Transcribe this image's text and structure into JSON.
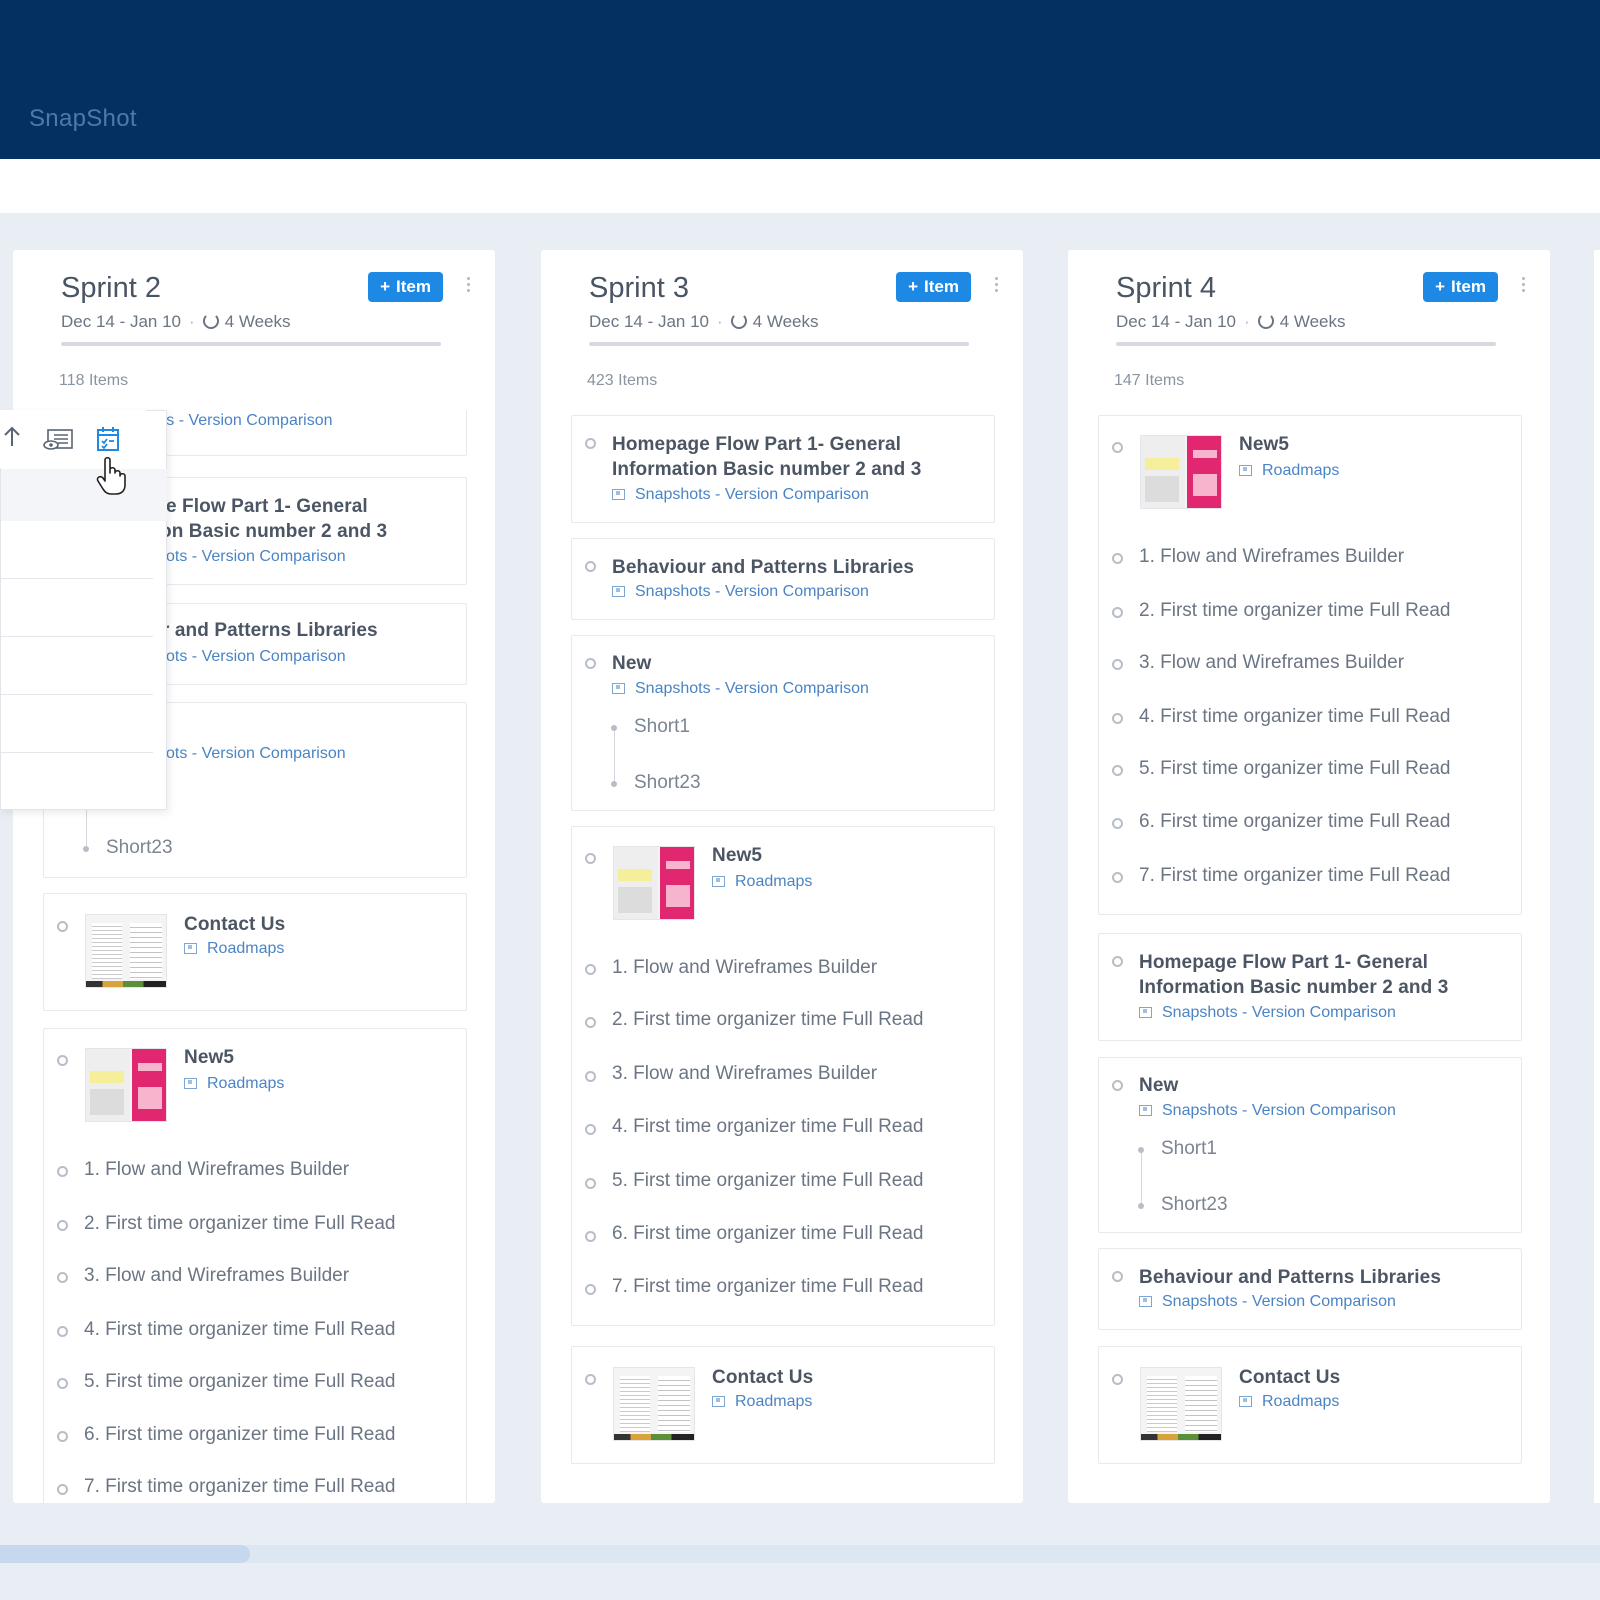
{
  "app": {
    "title": "SnapShot"
  },
  "columns": [
    {
      "name": "Sprint 2",
      "add_label": "Item",
      "dates": "Dec 14 - Jan 10",
      "duration": "4 Weeks",
      "count": "118 Items",
      "cards": {
        "top_partial_sub": "shots - Version Comparison",
        "homepage_title_1": "e Flow Part 1- General",
        "homepage_title_2": "on Basic number 2 and 3",
        "homepage_sub": "ots - Version Comparison",
        "behaviour_title": "r and Patterns Libraries",
        "behaviour_sub": "ots - Version Comparison",
        "new_sub": "ots - Version Comparison",
        "new_short2": "Short23",
        "contact_title": "Contact Us",
        "contact_sub": "Roadmaps",
        "new5_title": "New5",
        "new5_sub": "Roadmaps",
        "tasks": [
          "1.  Flow and Wireframes Builder",
          "2.  First time organizer time Full Read",
          "3.  Flow and Wireframes Builder",
          "4.  First time organizer time Full Read",
          "5.  First time organizer time Full Read",
          "6.  First time organizer time Full Read",
          "7.  First time organizer time Full Read"
        ]
      }
    },
    {
      "name": "Sprint 3",
      "add_label": "Item",
      "dates": "Dec 14 - Jan 10",
      "duration": "4 Weeks",
      "count": "423 Items",
      "cards": {
        "homepage_title_1": "Homepage Flow Part 1- General",
        "homepage_title_2": "Information Basic number 2 and 3",
        "homepage_sub": "Snapshots - Version Comparison",
        "behaviour_title": "Behaviour and Patterns Libraries",
        "behaviour_sub": "Snapshots - Version Comparison",
        "new_title": "New",
        "new_sub": "Snapshots - Version Comparison",
        "new_short1": "Short1",
        "new_short2": "Short23",
        "new5_title": "New5",
        "new5_sub": "Roadmaps",
        "tasks": [
          "1.  Flow and Wireframes Builder",
          "2.  First time organizer time Full Read",
          "3.  Flow and Wireframes Builder",
          "4.  First time organizer time Full Read",
          "5.  First time organizer time Full Read",
          "6.  First time organizer time Full Read",
          "7.  First time organizer time Full Read"
        ],
        "contact_title": "Contact Us",
        "contact_sub": "Roadmaps"
      }
    },
    {
      "name": "Sprint 4",
      "add_label": "Item",
      "dates": "Dec 14 - Jan 10",
      "duration": "4 Weeks",
      "count": "147 Items",
      "cards": {
        "new5_title": "New5",
        "new5_sub": "Roadmaps",
        "tasks": [
          "1.  Flow and Wireframes Builder",
          "2.  First time organizer time Full Read",
          "3.  Flow and Wireframes Builder",
          "4.  First time organizer time Full Read",
          "5.  First time organizer time Full Read",
          "6.  First time organizer time Full Read",
          "7.  First time organizer time Full Read"
        ],
        "homepage_title_1": "Homepage Flow Part 1- General",
        "homepage_title_2": "Information Basic number 2 and 3",
        "homepage_sub": "Snapshots - Version Comparison",
        "new_title": "New",
        "new_sub": "Snapshots - Version Comparison",
        "new_short1": "Short1",
        "new_short2": "Short23",
        "behaviour_title": "Behaviour and Patterns Libraries",
        "behaviour_sub": "Snapshots - Version Comparison",
        "contact_title": "Contact Us",
        "contact_sub": "Roadmaps"
      }
    }
  ],
  "colors": {
    "topbar": "#04305f",
    "accent": "#1e88e5",
    "link": "#4a84c4",
    "background": "#e9eef5"
  }
}
